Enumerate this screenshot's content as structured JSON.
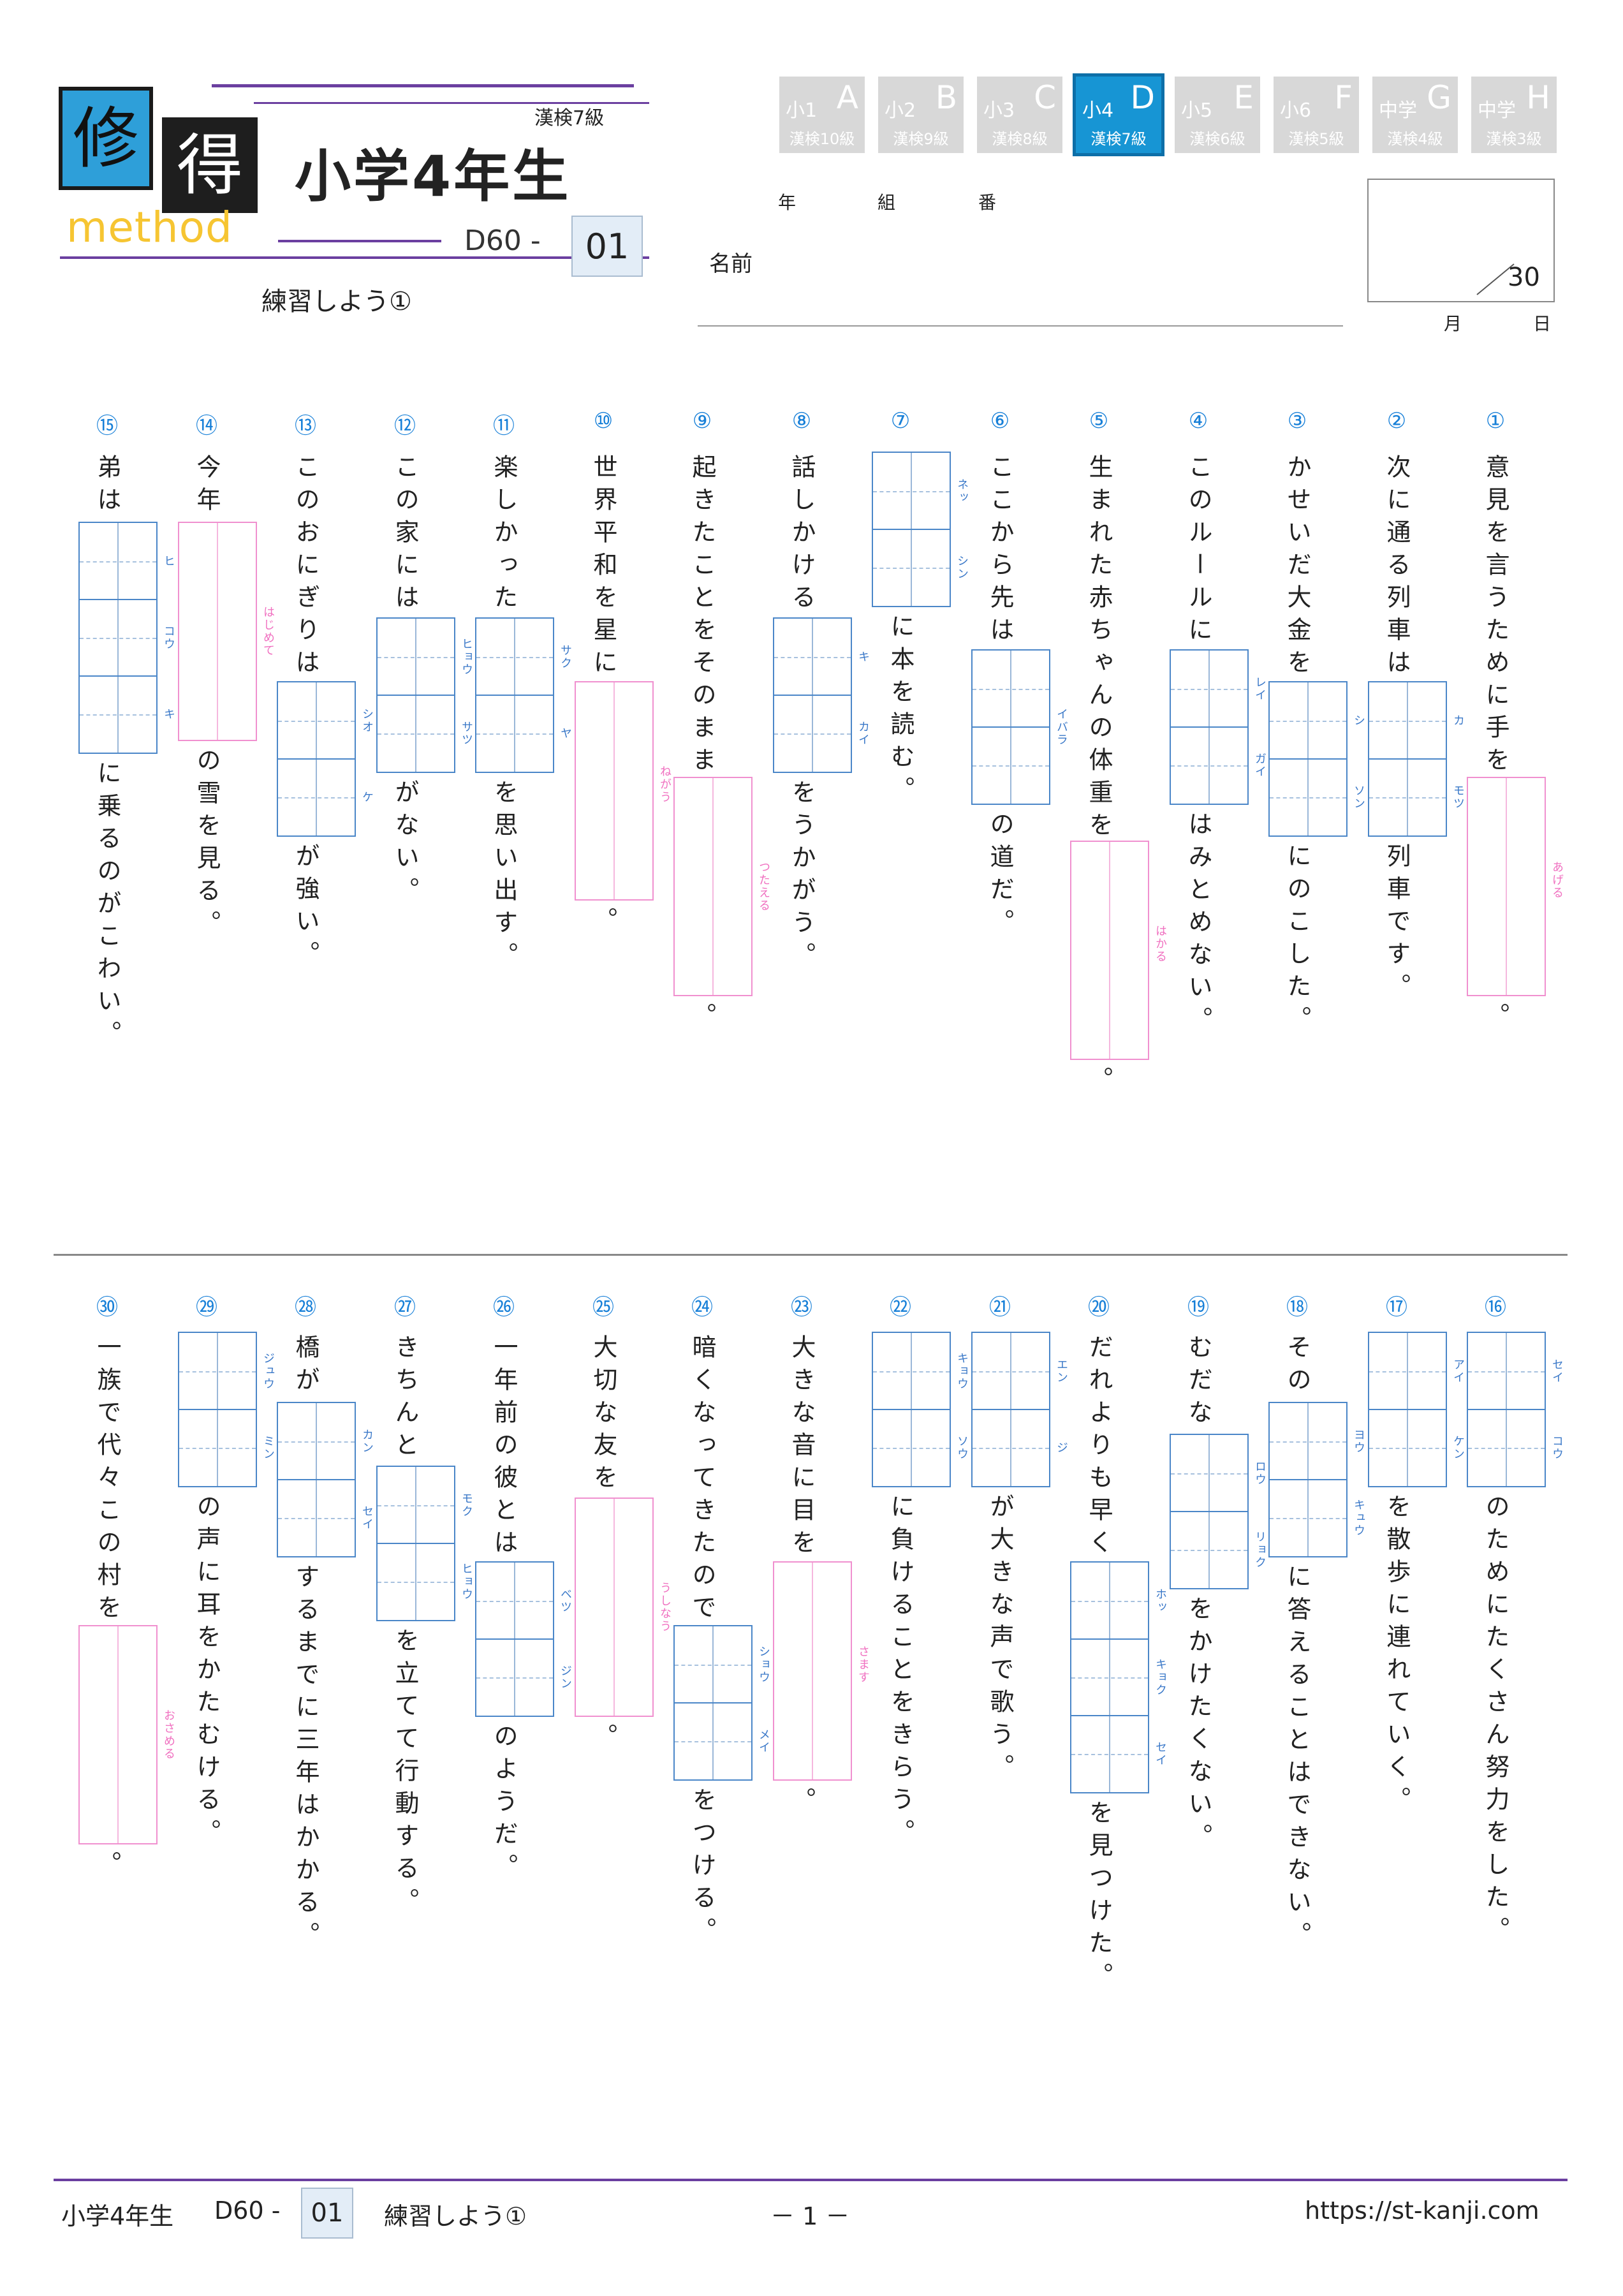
{
  "header": {
    "logo_char1": "修",
    "logo_char2": "得",
    "logo_word": "method",
    "title": "小学4年生",
    "kanken": "漢検7級",
    "code_prefix": "D60 -",
    "code_number": "01",
    "subtitle": "練習しよう①"
  },
  "grade_tabs": [
    {
      "grade": "小1",
      "letter": "A",
      "kanken": "漢検10級",
      "active": false
    },
    {
      "grade": "小2",
      "letter": "B",
      "kanken": "漢検9級",
      "active": false
    },
    {
      "grade": "小3",
      "letter": "C",
      "kanken": "漢検8級",
      "active": false
    },
    {
      "grade": "小4",
      "letter": "D",
      "kanken": "漢検7級",
      "active": true
    },
    {
      "grade": "小5",
      "letter": "E",
      "kanken": "漢検6級",
      "active": false
    },
    {
      "grade": "小6",
      "letter": "F",
      "kanken": "漢検5級",
      "active": false
    },
    {
      "grade": "中学",
      "letter": "G",
      "kanken": "漢検4級",
      "active": false
    },
    {
      "grade": "中学",
      "letter": "H",
      "kanken": "漢検3級",
      "active": false
    }
  ],
  "student": {
    "year_label": "年",
    "class_label": "組",
    "number_label": "番",
    "name_label": "名前",
    "score": "30",
    "month_label": "月",
    "day_label": "日"
  },
  "questions": [
    {
      "num": "①",
      "before": "意見を言うために手を",
      "box": "hira",
      "reading": "あげる",
      "after": "。"
    },
    {
      "num": "②",
      "before": "次に通る列車は",
      "box": "kanji",
      "readings": [
        "カ",
        "モツ"
      ],
      "after": "列車です。"
    },
    {
      "num": "③",
      "before": "かせいだ大金を",
      "box": "kanji",
      "readings": [
        "シ",
        "ソン"
      ],
      "after": "にのこした。"
    },
    {
      "num": "④",
      "before": "このルールに",
      "box": "kanji",
      "readings": [
        "レイ",
        "ガイ"
      ],
      "after": "はみとめない。"
    },
    {
      "num": "⑤",
      "before": "生まれた赤ちゃんの体重を",
      "box": "hira",
      "reading": "はかる",
      "after": "。"
    },
    {
      "num": "⑥",
      "before": "ここから先は",
      "box": "kanji",
      "readings": [
        "イバラ"
      ],
      "after": "の道だ。"
    },
    {
      "num": "⑦",
      "before": "",
      "box": "kanji",
      "readings": [
        "ネッ",
        "シン"
      ],
      "after": "に本を読む。"
    },
    {
      "num": "⑧",
      "before": "話しかける",
      "box": "kanji",
      "readings": [
        "キ",
        "カイ"
      ],
      "after": "をうかがう。"
    },
    {
      "num": "⑨",
      "before": "起きたことをそのまま",
      "box": "hira",
      "reading": "つたえる",
      "after": "。"
    },
    {
      "num": "⑩",
      "before": "世界平和を星に",
      "box": "hira",
      "reading": "ねがう",
      "after": "。"
    },
    {
      "num": "⑪",
      "before": "楽しかった",
      "box": "kanji",
      "readings": [
        "サク",
        "ヤ"
      ],
      "after": "を思い出す。"
    },
    {
      "num": "⑫",
      "before": "この家には",
      "box": "kanji",
      "readings": [
        "ヒョウ",
        "サツ"
      ],
      "after": "がない。"
    },
    {
      "num": "⑬",
      "before": "このおにぎりは",
      "box": "kanji",
      "readings": [
        "シオ",
        "ケ"
      ],
      "after": "が強い。"
    },
    {
      "num": "⑭",
      "before": "今年",
      "box": "hira",
      "reading": "はじめて",
      "after": "の雪を見る。"
    },
    {
      "num": "⑮",
      "before": "弟は",
      "box": "kanji3",
      "readings": [
        "ヒ",
        "コウ",
        "キ"
      ],
      "after": "に乗るのがこわい。"
    },
    {
      "num": "⑯",
      "before": "",
      "box": "kanji",
      "readings": [
        "セイ",
        "コウ"
      ],
      "after": "のためにたくさん努力をした。"
    },
    {
      "num": "⑰",
      "before": "",
      "box": "kanji",
      "readings": [
        "アイ",
        "ケン"
      ],
      "after": "を散歩に連れていく。"
    },
    {
      "num": "⑱",
      "before": "その",
      "box": "kanji",
      "readings": [
        "ヨウ",
        "キュウ"
      ],
      "after": "に答えることはできない。"
    },
    {
      "num": "⑲",
      "before": "むだな",
      "box": "kanji",
      "readings": [
        "ロウ",
        "リョク"
      ],
      "after": "をかけたくない。"
    },
    {
      "num": "⑳",
      "before": "だれよりも早く",
      "box": "kanji3",
      "readings": [
        "ホッ",
        "キョク",
        "セイ"
      ],
      "after": "を見つけた。"
    },
    {
      "num": "㉑",
      "before": "",
      "box": "kanji",
      "readings": [
        "エン",
        "ジ"
      ],
      "after": "が大きな声で歌う。"
    },
    {
      "num": "㉒",
      "before": "",
      "box": "kanji",
      "readings": [
        "キョウ",
        "ソウ"
      ],
      "after": "に負けることをきらう。"
    },
    {
      "num": "㉓",
      "before": "大きな音に目を",
      "box": "hira",
      "reading": "さます",
      "after": "。"
    },
    {
      "num": "㉔",
      "before": "暗くなってきたので",
      "box": "kanji",
      "readings": [
        "ショウ",
        "メイ"
      ],
      "after": "をつける。"
    },
    {
      "num": "㉕",
      "before": "大切な友を",
      "box": "hira",
      "reading": "うしなう",
      "after": "。"
    },
    {
      "num": "㉖",
      "before": "一年前の彼とは",
      "box": "kanji",
      "readings": [
        "ベツ",
        "ジン"
      ],
      "after": "のようだ。"
    },
    {
      "num": "㉗",
      "before": "きちんと",
      "box": "kanji",
      "readings": [
        "モク",
        "ヒョウ"
      ],
      "after": "を立てて行動する。"
    },
    {
      "num": "㉘",
      "before": "橋が",
      "box": "kanji",
      "readings": [
        "カン",
        "セイ"
      ],
      "after": "するまでに三年はかかる。"
    },
    {
      "num": "㉙",
      "before": "",
      "box": "kanji",
      "readings": [
        "ジュウ",
        "ミン"
      ],
      "after": "の声に耳をかたむける。"
    },
    {
      "num": "㉚",
      "before": "一族で代々この村を",
      "box": "hira",
      "reading": "おさめる",
      "after": "。"
    }
  ],
  "footer": {
    "grade": "小学4年生",
    "code_prefix": "D60 -",
    "code_number": "01",
    "subtitle": "練習しよう①",
    "page": "－ 1 －",
    "url": "https://st-kanji.com"
  },
  "colors": {
    "accent_blue": "#1795d4",
    "purple_rule": "#6b3fa0",
    "kanji_box": "#4a86c8",
    "hira_box": "#f090cf",
    "logo_yellow": "#f6c532"
  }
}
